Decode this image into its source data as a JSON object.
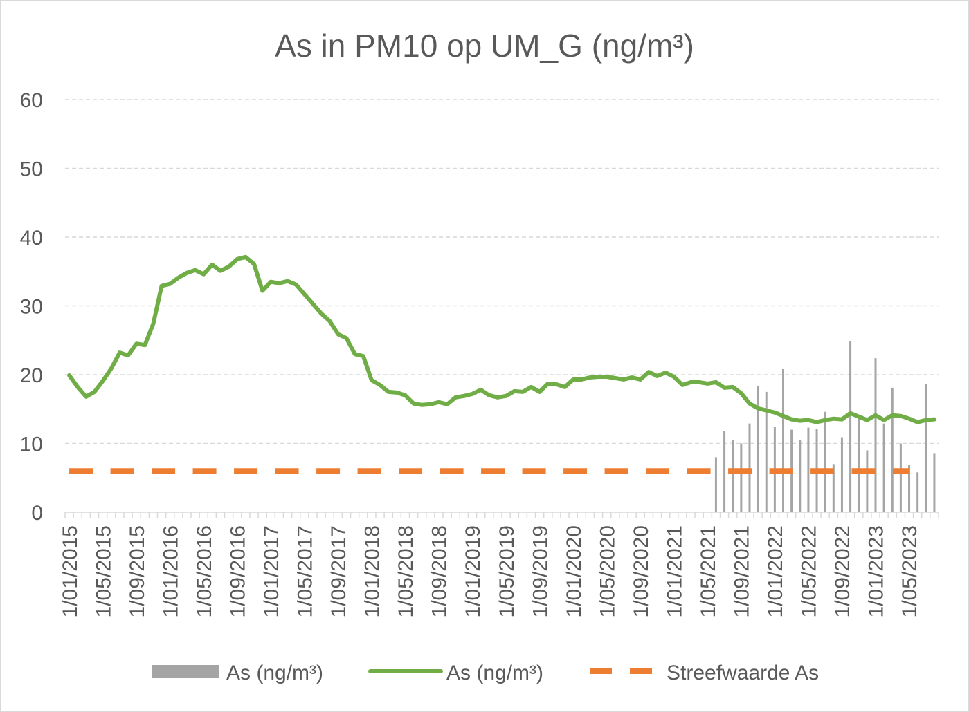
{
  "chart_data": {
    "type": "line",
    "title": "As in PM10 op UM_G (ng/m³)",
    "ylim": [
      0,
      60
    ],
    "yticks": [
      0,
      10,
      20,
      30,
      40,
      50,
      60
    ],
    "grid": true,
    "legend_position": "bottom",
    "x": [
      "1/01/2015",
      "1/02/2015",
      "1/03/2015",
      "1/04/2015",
      "1/05/2015",
      "1/06/2015",
      "1/07/2015",
      "1/08/2015",
      "1/09/2015",
      "1/10/2015",
      "1/11/2015",
      "1/12/2015",
      "1/01/2016",
      "1/02/2016",
      "1/03/2016",
      "1/04/2016",
      "1/05/2016",
      "1/06/2016",
      "1/07/2016",
      "1/08/2016",
      "1/09/2016",
      "1/10/2016",
      "1/11/2016",
      "1/12/2016",
      "1/01/2017",
      "1/02/2017",
      "1/03/2017",
      "1/04/2017",
      "1/05/2017",
      "1/06/2017",
      "1/07/2017",
      "1/08/2017",
      "1/09/2017",
      "1/10/2017",
      "1/11/2017",
      "1/12/2017",
      "1/01/2018",
      "1/02/2018",
      "1/03/2018",
      "1/04/2018",
      "1/05/2018",
      "1/06/2018",
      "1/07/2018",
      "1/08/2018",
      "1/09/2018",
      "1/10/2018",
      "1/11/2018",
      "1/12/2018",
      "1/01/2019",
      "1/02/2019",
      "1/03/2019",
      "1/04/2019",
      "1/05/2019",
      "1/06/2019",
      "1/07/2019",
      "1/08/2019",
      "1/09/2019",
      "1/10/2019",
      "1/11/2019",
      "1/12/2019",
      "1/01/2020",
      "1/02/2020",
      "1/03/2020",
      "1/04/2020",
      "1/05/2020",
      "1/06/2020",
      "1/07/2020",
      "1/08/2020",
      "1/09/2020",
      "1/10/2020",
      "1/11/2020",
      "1/12/2020",
      "1/01/2021",
      "1/02/2021",
      "1/03/2021",
      "1/04/2021",
      "1/05/2021",
      "1/06/2021",
      "1/07/2021",
      "1/08/2021",
      "1/09/2021",
      "1/10/2021",
      "1/11/2021",
      "1/12/2021",
      "1/01/2022",
      "1/02/2022",
      "1/03/2022",
      "1/04/2022",
      "1/05/2022",
      "1/06/2022",
      "1/07/2022",
      "1/08/2022",
      "1/09/2022",
      "1/10/2022",
      "1/11/2022",
      "1/12/2022",
      "1/01/2023",
      "1/02/2023",
      "1/03/2023",
      "1/04/2023",
      "1/05/2023",
      "1/06/2023",
      "1/07/2023",
      "1/08/2023"
    ],
    "series": [
      {
        "name": "As (ng/m³)",
        "type": "bar",
        "color": "#A5A5A5",
        "values": [
          null,
          null,
          null,
          null,
          null,
          null,
          null,
          null,
          null,
          null,
          null,
          null,
          null,
          null,
          null,
          null,
          null,
          null,
          null,
          null,
          null,
          null,
          null,
          null,
          null,
          null,
          null,
          null,
          null,
          null,
          null,
          null,
          null,
          null,
          null,
          null,
          null,
          null,
          null,
          null,
          null,
          null,
          null,
          null,
          null,
          null,
          null,
          null,
          null,
          null,
          null,
          null,
          null,
          null,
          null,
          null,
          null,
          null,
          null,
          null,
          null,
          null,
          null,
          null,
          null,
          null,
          null,
          null,
          null,
          null,
          null,
          null,
          null,
          null,
          null,
          null,
          null,
          8.0,
          11.8,
          10.5,
          10.0,
          12.9,
          18.4,
          17.5,
          12.4,
          20.8,
          12.0,
          10.5,
          12.3,
          12.1,
          14.6,
          7.0,
          10.9,
          24.9,
          13.8,
          9.0,
          22.4,
          12.9,
          18.1,
          10.0,
          6.9,
          5.8,
          18.6,
          8.5
        ]
      },
      {
        "name": "As (ng/m³)",
        "type": "line",
        "color": "#70AD47",
        "values": [
          19.9,
          18.2,
          16.8,
          17.5,
          19.1,
          20.9,
          23.2,
          22.8,
          24.5,
          24.3,
          27.4,
          32.9,
          33.2,
          34.1,
          34.8,
          35.2,
          34.6,
          36.0,
          35.1,
          35.7,
          36.8,
          37.1,
          36.1,
          32.2,
          33.5,
          33.3,
          33.6,
          33.1,
          31.7,
          30.3,
          28.9,
          27.8,
          25.9,
          25.3,
          23.0,
          22.7,
          19.2,
          18.5,
          17.5,
          17.4,
          17.0,
          15.8,
          15.6,
          15.7,
          16.0,
          15.7,
          16.7,
          16.9,
          17.2,
          17.8,
          17.0,
          16.7,
          16.9,
          17.6,
          17.5,
          18.2,
          17.5,
          18.7,
          18.6,
          18.2,
          19.3,
          19.3,
          19.6,
          19.7,
          19.7,
          19.5,
          19.3,
          19.6,
          19.3,
          20.4,
          19.8,
          20.3,
          19.7,
          18.5,
          18.9,
          18.9,
          18.7,
          18.9,
          18.1,
          18.2,
          17.3,
          15.8,
          15.1,
          14.8,
          14.5,
          14.0,
          13.5,
          13.3,
          13.4,
          13.1,
          13.4,
          13.6,
          13.5,
          14.4,
          13.9,
          13.4,
          14.1,
          13.4,
          14.1,
          14.0,
          13.6,
          13.1,
          13.4,
          13.5
        ]
      },
      {
        "name": "Streefwaarde As",
        "type": "line",
        "line_style": "dashed",
        "color": "#ED7D31",
        "values": [
          6,
          6,
          6,
          6,
          6,
          6,
          6,
          6,
          6,
          6,
          6,
          6,
          6,
          6,
          6,
          6,
          6,
          6,
          6,
          6,
          6,
          6,
          6,
          6,
          6,
          6,
          6,
          6,
          6,
          6,
          6,
          6,
          6,
          6,
          6,
          6,
          6,
          6,
          6,
          6,
          6,
          6,
          6,
          6,
          6,
          6,
          6,
          6,
          6,
          6,
          6,
          6,
          6,
          6,
          6,
          6,
          6,
          6,
          6,
          6,
          6,
          6,
          6,
          6,
          6,
          6,
          6,
          6,
          6,
          6,
          6,
          6,
          6,
          6,
          6,
          6,
          6,
          6,
          6,
          6,
          6,
          6,
          6,
          6,
          6,
          6,
          6,
          6,
          6,
          6,
          6,
          6,
          6,
          6,
          6,
          6,
          6,
          6,
          6,
          6,
          6,
          null,
          null,
          null
        ]
      }
    ]
  }
}
